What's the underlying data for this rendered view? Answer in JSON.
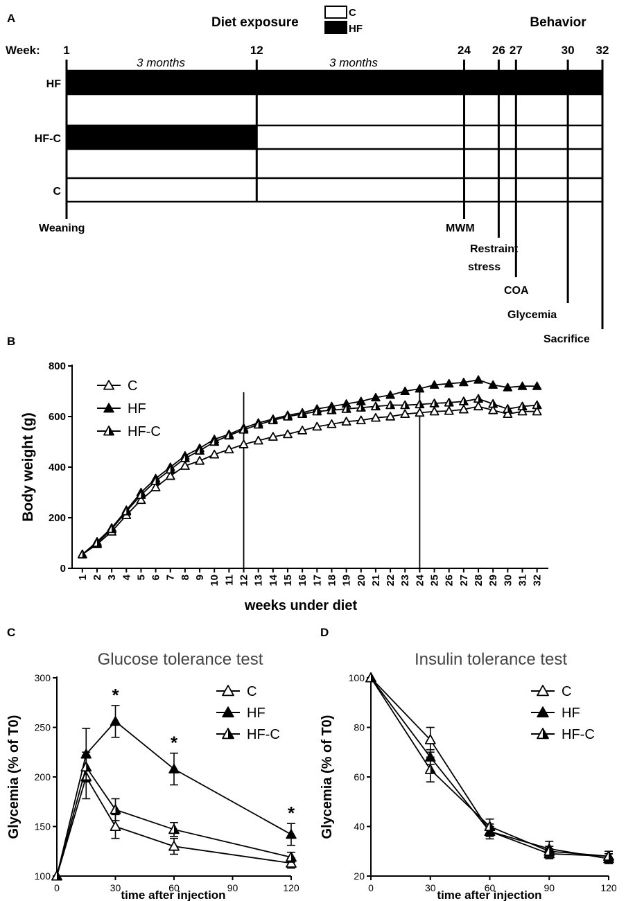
{
  "panel_a": {
    "label": "A",
    "title": "Diet exposure",
    "legend": [
      {
        "name": "C",
        "fill": "#ffffff"
      },
      {
        "name": "HF",
        "fill": "#000000"
      }
    ],
    "behavior": "Behavior",
    "week_label": "Week:",
    "weeks": [
      1,
      12,
      24,
      26,
      27,
      30,
      32
    ],
    "span_labels": [
      "3 months",
      "3 months"
    ],
    "groups": [
      {
        "name": "HF",
        "hf_until_week": 32
      },
      {
        "name": "HF-C",
        "hf_until_week": 12
      },
      {
        "name": "C",
        "hf_until_week": 1
      }
    ],
    "events": [
      {
        "name": "Weaning",
        "week": 1
      },
      {
        "name": "MWM",
        "week": 24
      },
      {
        "name": "Restraint stress",
        "week": 26
      },
      {
        "name": "COA",
        "week": 27
      },
      {
        "name": "Glycemia",
        "week": 30
      },
      {
        "name": "Sacrifice",
        "week": 32
      }
    ]
  },
  "chart_data": [
    {
      "panel": "B",
      "type": "line",
      "title": "",
      "xlabel": "weeks under diet",
      "ylabel": "Body weight (g)",
      "x": [
        1,
        2,
        3,
        4,
        5,
        6,
        7,
        8,
        9,
        10,
        11,
        12,
        13,
        14,
        15,
        16,
        17,
        18,
        19,
        20,
        21,
        22,
        23,
        24,
        25,
        26,
        27,
        28,
        29,
        30,
        31,
        32
      ],
      "ylim": [
        0,
        800
      ],
      "yticks": [
        0,
        200,
        400,
        600,
        800
      ],
      "reference_lines_x": [
        12,
        24
      ],
      "legend": [
        "C",
        "HF",
        "HF-C"
      ],
      "series": [
        {
          "name": "C",
          "marker": "open-triangle",
          "values": [
            55,
            95,
            145,
            210,
            270,
            320,
            365,
            405,
            425,
            450,
            470,
            490,
            505,
            520,
            530,
            545,
            560,
            570,
            580,
            585,
            595,
            600,
            610,
            615,
            620,
            622,
            628,
            640,
            625,
            610,
            620,
            620
          ]
        },
        {
          "name": "HF",
          "marker": "filled-triangle",
          "values": [
            55,
            105,
            160,
            230,
            300,
            355,
            400,
            445,
            475,
            510,
            530,
            555,
            575,
            590,
            605,
            615,
            630,
            640,
            650,
            660,
            675,
            685,
            700,
            710,
            725,
            730,
            735,
            745,
            725,
            715,
            720,
            720
          ]
        },
        {
          "name": "HF-C",
          "marker": "half-triangle",
          "values": [
            55,
            100,
            155,
            225,
            290,
            345,
            390,
            435,
            465,
            500,
            525,
            548,
            568,
            585,
            600,
            610,
            620,
            625,
            630,
            635,
            640,
            645,
            645,
            648,
            652,
            655,
            660,
            670,
            650,
            630,
            640,
            645
          ]
        }
      ]
    },
    {
      "panel": "C",
      "type": "line",
      "title": "Glucose tolerance test",
      "xlabel": "time after injection",
      "ylabel": "Glycemia (% of T0)",
      "x": [
        0,
        15,
        30,
        60,
        120
      ],
      "xticks": [
        0,
        30,
        60,
        90,
        120
      ],
      "ylim": [
        100,
        300
      ],
      "yticks": [
        100,
        150,
        200,
        250,
        300
      ],
      "legend": [
        "C",
        "HF",
        "HF-C"
      ],
      "significance": [
        {
          "x": 30,
          "label": "*"
        },
        {
          "x": 60,
          "label": "*"
        },
        {
          "x": 120,
          "label": "*"
        }
      ],
      "series": [
        {
          "name": "C",
          "marker": "open-triangle",
          "values": [
            100,
            200,
            150,
            130,
            113
          ],
          "errors": [
            0,
            22,
            12,
            8,
            5
          ]
        },
        {
          "name": "HF",
          "marker": "filled-triangle",
          "values": [
            100,
            223,
            256,
            208,
            142
          ],
          "errors": [
            0,
            26,
            16,
            16,
            11
          ]
        },
        {
          "name": "HF-C",
          "marker": "half-triangle",
          "values": [
            100,
            210,
            167,
            147,
            119
          ],
          "errors": [
            0,
            15,
            11,
            7,
            5
          ]
        }
      ]
    },
    {
      "panel": "D",
      "type": "line",
      "title": "Insulin tolerance test",
      "xlabel": "time after injection",
      "ylabel": "Glycemia (% of T0)",
      "x": [
        0,
        30,
        60,
        90,
        120
      ],
      "xticks": [
        0,
        30,
        60,
        90,
        120
      ],
      "ylim": [
        20,
        100
      ],
      "yticks": [
        20,
        40,
        60,
        80,
        100
      ],
      "legend": [
        "C",
        "HF",
        "HF-C"
      ],
      "series": [
        {
          "name": "C",
          "marker": "open-triangle",
          "values": [
            100,
            75,
            38,
            29,
            28
          ],
          "errors": [
            0,
            5,
            2,
            2,
            1
          ]
        },
        {
          "name": "HF",
          "marker": "filled-triangle",
          "values": [
            100,
            68,
            38,
            31,
            27
          ],
          "errors": [
            0,
            3,
            3,
            3,
            2
          ]
        },
        {
          "name": "HF-C",
          "marker": "half-triangle",
          "values": [
            100,
            63,
            40,
            30,
            28
          ],
          "errors": [
            0,
            5,
            3,
            2,
            2
          ]
        }
      ]
    }
  ]
}
